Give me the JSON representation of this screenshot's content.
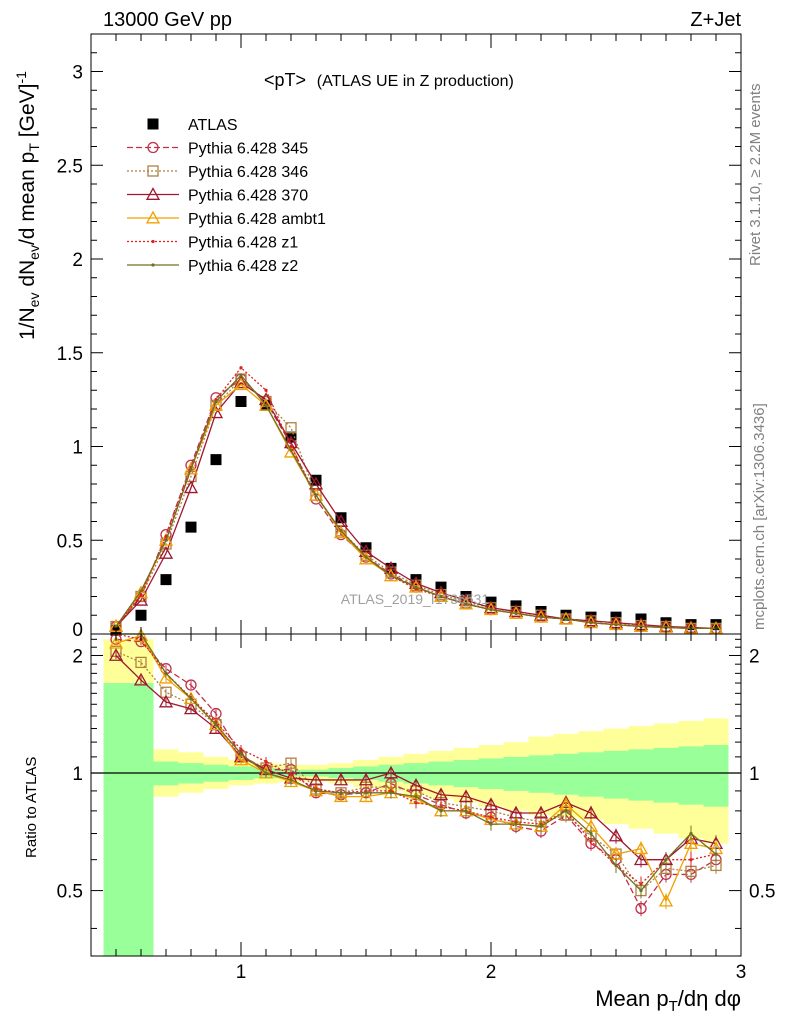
{
  "header": {
    "left": "13000 GeV pp",
    "right": "Z+Jet"
  },
  "side_texts": {
    "rivet": "Rivet 3.1.10, ≥ 2.2M events",
    "mcplots": "mcplots.cern.ch [arXiv:1306.3436]"
  },
  "chart_data": [
    {
      "panel": "main",
      "type": "scatter",
      "title": "<pT> (ATLAS UE in Z production)",
      "title_main": "<pT>",
      "title_sub": "(ATLAS UE in Z production)",
      "ylabel": "1/N_ev dN_ev/d mean p_T [GeV]^-1",
      "ylim": [
        0,
        3.2
      ],
      "xlim": [
        0.4,
        3.0
      ],
      "yticks": [
        "0",
        "0.5",
        "1",
        "1.5",
        "2",
        "2.5",
        "3"
      ],
      "watermark": "ATLAS_2019_I1736531",
      "legend_position": "top-left",
      "x": [
        0.5,
        0.6,
        0.7,
        0.8,
        0.9,
        1.0,
        1.1,
        1.2,
        1.3,
        1.4,
        1.5,
        1.6,
        1.7,
        1.8,
        1.9,
        2.0,
        2.1,
        2.2,
        2.3,
        2.4,
        2.5,
        2.6,
        2.7,
        2.8,
        2.9
      ],
      "series": [
        {
          "name": "ATLAS",
          "color": "#000000",
          "marker": "square",
          "values": [
            0.02,
            0.1,
            0.29,
            0.57,
            0.93,
            1.24,
            1.22,
            1.05,
            0.82,
            0.62,
            0.46,
            0.35,
            0.29,
            0.25,
            0.2,
            0.17,
            0.15,
            0.12,
            0.1,
            0.09,
            0.09,
            0.08,
            0.06,
            0.05,
            0.05
          ]
        },
        {
          "name": "Pythia 6.428 345",
          "color": "#C0304C",
          "marker": "open-circle",
          "dash": "6,3",
          "values": [
            0.04,
            0.2,
            0.53,
            0.9,
            1.26,
            1.36,
            1.24,
            1.01,
            0.72,
            0.53,
            0.41,
            0.32,
            0.25,
            0.2,
            0.16,
            0.13,
            0.11,
            0.09,
            0.08,
            0.06,
            0.05,
            0.04,
            0.035,
            0.03,
            0.03
          ]
        },
        {
          "name": "Pythia 6.428 346",
          "color": "#B08040",
          "marker": "open-square",
          "dash": "2,2",
          "values": [
            0.04,
            0.2,
            0.48,
            0.84,
            1.22,
            1.36,
            1.24,
            1.1,
            0.74,
            0.55,
            0.42,
            0.33,
            0.26,
            0.21,
            0.17,
            0.14,
            0.12,
            0.1,
            0.08,
            0.07,
            0.06,
            0.045,
            0.04,
            0.03,
            0.03
          ]
        },
        {
          "name": "Pythia 6.428 370",
          "color": "#A01830",
          "marker": "open-triangle",
          "dash": "",
          "values": [
            0.04,
            0.18,
            0.43,
            0.78,
            1.18,
            1.34,
            1.25,
            1.02,
            0.8,
            0.6,
            0.44,
            0.35,
            0.27,
            0.22,
            0.18,
            0.14,
            0.12,
            0.1,
            0.08,
            0.07,
            0.06,
            0.05,
            0.04,
            0.035,
            0.03
          ]
        },
        {
          "name": "Pythia 6.428 ambt1",
          "color": "#F0A000",
          "marker": "open-triangle",
          "dash": "",
          "values": [
            0.04,
            0.22,
            0.5,
            0.88,
            1.22,
            1.33,
            1.22,
            0.97,
            0.74,
            0.54,
            0.4,
            0.31,
            0.25,
            0.2,
            0.16,
            0.13,
            0.11,
            0.09,
            0.08,
            0.06,
            0.05,
            0.04,
            0.035,
            0.03,
            0.03
          ]
        },
        {
          "name": "Pythia 6.428 z1",
          "color": "#E02020",
          "marker": "dot",
          "dash": "2,2",
          "values": [
            0.04,
            0.21,
            0.52,
            0.89,
            1.25,
            1.42,
            1.3,
            1.0,
            0.74,
            0.55,
            0.41,
            0.31,
            0.24,
            0.2,
            0.16,
            0.13,
            0.11,
            0.09,
            0.08,
            0.06,
            0.05,
            0.04,
            0.035,
            0.03,
            0.03
          ]
        },
        {
          "name": "Pythia 6.428 z2",
          "color": "#707020",
          "marker": "dot",
          "dash": "",
          "values": [
            0.04,
            0.23,
            0.5,
            0.88,
            1.24,
            1.38,
            1.22,
            0.98,
            0.74,
            0.55,
            0.41,
            0.31,
            0.25,
            0.2,
            0.16,
            0.13,
            0.11,
            0.09,
            0.08,
            0.06,
            0.05,
            0.04,
            0.035,
            0.03,
            0.03
          ]
        }
      ]
    },
    {
      "panel": "ratio",
      "type": "line",
      "ylabel": "Ratio to ATLAS",
      "ylim": [
        0.34,
        2.27
      ],
      "xlim": [
        0.4,
        3.0
      ],
      "xlabel": "Mean p_T/dη dφ",
      "xticks": [
        "1",
        "2",
        "3"
      ],
      "yticks": [
        "0.5",
        "1",
        "2"
      ],
      "x": [
        0.5,
        0.6,
        0.7,
        0.8,
        0.9,
        1.0,
        1.1,
        1.2,
        1.3,
        1.4,
        1.5,
        1.6,
        1.7,
        1.8,
        1.9,
        2.0,
        2.1,
        2.2,
        2.3,
        2.4,
        2.5,
        2.6,
        2.7,
        2.8,
        2.9
      ],
      "bands": {
        "edges": [
          0.45,
          0.55,
          0.65,
          0.75,
          0.85,
          0.95,
          1.05,
          1.15,
          1.25,
          1.35,
          1.45,
          1.55,
          1.65,
          1.75,
          1.85,
          1.95,
          2.05,
          2.15,
          2.25,
          2.35,
          2.45,
          2.55,
          2.65,
          2.75,
          2.85,
          2.95
        ],
        "yellow_hi": [
          2.2,
          2.2,
          1.15,
          1.13,
          1.1,
          1.08,
          1.06,
          1.05,
          1.05,
          1.06,
          1.08,
          1.1,
          1.12,
          1.14,
          1.16,
          1.18,
          1.2,
          1.24,
          1.26,
          1.28,
          1.3,
          1.32,
          1.34,
          1.36,
          1.38
        ],
        "yellow_lo": [
          0.5,
          0.72,
          0.87,
          0.89,
          0.91,
          0.93,
          0.94,
          0.95,
          0.95,
          0.94,
          0.92,
          0.9,
          0.88,
          0.86,
          0.84,
          0.82,
          0.8,
          0.78,
          0.77,
          0.76,
          0.74,
          0.72,
          0.7,
          0.68,
          0.66
        ],
        "green_hi": [
          1.7,
          1.7,
          1.07,
          1.06,
          1.05,
          1.04,
          1.03,
          1.02,
          1.02,
          1.03,
          1.04,
          1.05,
          1.06,
          1.07,
          1.08,
          1.09,
          1.1,
          1.11,
          1.12,
          1.13,
          1.14,
          1.15,
          1.16,
          1.17,
          1.18
        ],
        "green_lo": [
          0.34,
          0.34,
          0.93,
          0.94,
          0.95,
          0.96,
          0.97,
          0.98,
          0.98,
          0.97,
          0.96,
          0.95,
          0.94,
          0.93,
          0.92,
          0.91,
          0.9,
          0.89,
          0.88,
          0.87,
          0.86,
          0.85,
          0.84,
          0.83,
          0.82
        ],
        "yellow_color": "#FFFF99",
        "green_color": "#99FF99"
      },
      "series": [
        {
          "name": "Pythia 6.428 345",
          "color": "#C0304C",
          "marker": "open-circle",
          "dash": "6,3",
          "values": [
            2.2,
            2.17,
            1.85,
            1.68,
            1.42,
            1.11,
            1.02,
            1.02,
            0.89,
            0.88,
            0.89,
            0.94,
            0.88,
            0.83,
            0.79,
            0.77,
            0.73,
            0.71,
            0.78,
            0.66,
            0.6,
            0.45,
            0.55,
            0.55,
            0.6
          ]
        },
        {
          "name": "Pythia 6.428 346",
          "color": "#B08040",
          "marker": "open-square",
          "dash": "2,2",
          "values": [
            2.05,
            1.92,
            1.61,
            1.5,
            1.33,
            1.1,
            1.03,
            1.06,
            0.91,
            0.89,
            0.92,
            0.92,
            0.9,
            0.84,
            0.82,
            0.8,
            0.77,
            0.75,
            0.78,
            0.69,
            0.62,
            0.5,
            0.57,
            0.56,
            0.58
          ]
        },
        {
          "name": "Pythia 6.428 370",
          "color": "#A01830",
          "marker": "open-triangle",
          "dash": "",
          "values": [
            2.0,
            1.73,
            1.52,
            1.46,
            1.3,
            1.1,
            1.02,
            0.97,
            0.96,
            0.96,
            0.96,
            1.0,
            0.93,
            0.88,
            0.87,
            0.83,
            0.79,
            0.79,
            0.84,
            0.79,
            0.69,
            0.6,
            0.6,
            0.68,
            0.66
          ]
        },
        {
          "name": "Pythia 6.428 ambt1",
          "color": "#F0A000",
          "marker": "open-triangle",
          "dash": "",
          "values": [
            2.15,
            2.25,
            1.75,
            1.55,
            1.33,
            1.08,
            1.0,
            0.95,
            0.9,
            0.87,
            0.87,
            0.89,
            0.86,
            0.8,
            0.8,
            0.76,
            0.74,
            0.73,
            0.83,
            0.73,
            0.62,
            0.64,
            0.47,
            0.66,
            0.64
          ]
        },
        {
          "name": "Pythia 6.428 z1",
          "color": "#E02020",
          "marker": "dot",
          "dash": "2,2",
          "values": [
            2.3,
            2.2,
            1.8,
            1.56,
            1.35,
            1.15,
            1.07,
            0.99,
            0.91,
            0.89,
            0.9,
            0.9,
            0.84,
            0.82,
            0.8,
            0.77,
            0.75,
            0.74,
            0.8,
            0.67,
            0.58,
            0.52,
            0.6,
            0.6,
            0.62
          ]
        },
        {
          "name": "Pythia 6.428 z2",
          "color": "#707020",
          "marker": "dot",
          "dash": "",
          "values": [
            2.4,
            2.3,
            1.8,
            1.55,
            1.33,
            1.12,
            1.0,
            0.96,
            0.9,
            0.89,
            0.89,
            0.89,
            0.87,
            0.8,
            0.8,
            0.74,
            0.74,
            0.73,
            0.8,
            0.7,
            0.58,
            0.5,
            0.6,
            0.7,
            0.62
          ]
        }
      ]
    }
  ]
}
